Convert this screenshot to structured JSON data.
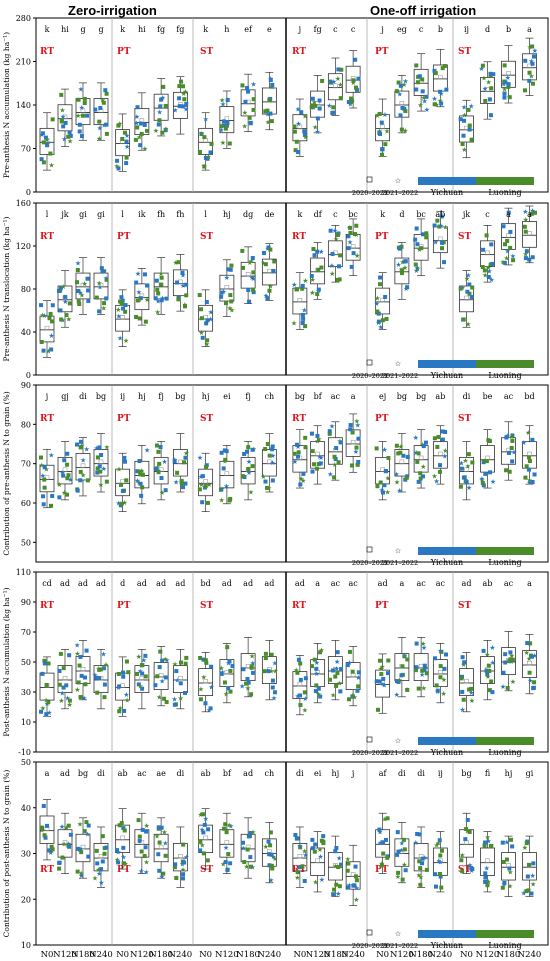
{
  "header": {
    "left": "Zero-irrigation",
    "right": "One-off irrigation"
  },
  "colors": {
    "yichuan": "#2b78c2",
    "luoning": "#4a8c2a",
    "red_label": "#e0141c",
    "box": "#333333"
  },
  "tillage": [
    "RT",
    "PT",
    "ST"
  ],
  "x_categories": [
    "N0",
    "N120",
    "N180",
    "N240"
  ],
  "legend": {
    "year1": "2020–2021",
    "year2": "2021–2022",
    "site1": "Yichuan",
    "site2": "Luoning"
  },
  "chart_data": [
    {
      "type": "box",
      "ylabel": "Pre-anthesis N accumulation (kg ha⁻¹)",
      "ylim": [
        0,
        280
      ],
      "yticks": [
        0,
        70,
        140,
        210,
        280
      ],
      "letters": [
        "k",
        "hi",
        "g",
        "g",
        "k",
        "hi",
        "fg",
        "fg",
        "k",
        "h",
        "ef",
        "e",
        "j",
        "fg",
        "c",
        "c",
        "j",
        "eg",
        "c",
        "b",
        "ij",
        "d",
        "b",
        "a"
      ],
      "medians": [
        80,
        118,
        128,
        128,
        78,
        112,
        135,
        138,
        80,
        115,
        142,
        145,
        102,
        140,
        168,
        180,
        102,
        140,
        175,
        182,
        100,
        162,
        188,
        200
      ]
    },
    {
      "type": "box",
      "ylabel": "Pre-anthesis N translocation (kg ha⁻¹)",
      "ylim": [
        0,
        160
      ],
      "yticks": [
        0,
        40,
        80,
        120,
        160
      ],
      "letters": [
        "l",
        "jk",
        "gi",
        "gi",
        "l",
        "ik",
        "fh",
        "fh",
        "l",
        "hj",
        "dg",
        "de",
        "k",
        "df",
        "c",
        "bc",
        "k",
        "d",
        "bc",
        "ab",
        "jk",
        "c",
        "a",
        "a"
      ],
      "medians": [
        42,
        70,
        82,
        82,
        52,
        72,
        82,
        85,
        52,
        80,
        92,
        95,
        68,
        96,
        112,
        118,
        68,
        96,
        118,
        125,
        70,
        112,
        128,
        130
      ]
    },
    {
      "type": "box",
      "ylabel": "Contribution of pre-anthesis N to grain (%)",
      "ylim": [
        45,
        90
      ],
      "yticks": [
        50,
        60,
        70,
        80,
        90
      ],
      "letters": [
        "j",
        "gj",
        "di",
        "bg",
        "ij",
        "hj",
        "fj",
        "bg",
        "hj",
        "ei",
        "fj",
        "ch",
        "bg",
        "bf",
        "ac",
        "a",
        "ej",
        "bg",
        "bg",
        "ab",
        "di",
        "be",
        "ac",
        "bd"
      ],
      "medians": [
        66,
        68,
        69,
        70,
        65,
        67,
        68,
        70,
        65,
        67,
        68,
        70,
        71,
        72,
        73,
        75,
        68,
        70,
        71,
        72,
        68,
        71,
        73,
        72
      ]
    },
    {
      "type": "box",
      "ylabel": "Post-anthesis N accumulation (kg ha⁻¹)",
      "ylim": [
        -10,
        110
      ],
      "yticks": [
        -10,
        10,
        30,
        50,
        70,
        90,
        110
      ],
      "letters": [
        "cd",
        "ad",
        "ad",
        "ad",
        "d",
        "ad",
        "ad",
        "ad",
        "bd",
        "ad",
        "ad",
        "ad",
        "ad",
        "a",
        "ac",
        "ac",
        "ad",
        "a",
        "ac",
        "ac",
        "ad",
        "ab",
        "ac",
        "a"
      ],
      "medians": [
        33,
        38,
        44,
        38,
        33,
        38,
        40,
        38,
        36,
        42,
        46,
        44,
        34,
        42,
        44,
        40,
        35,
        46,
        46,
        42,
        36,
        44,
        50,
        48
      ]
    },
    {
      "type": "box",
      "ylabel": "Contribution of post-anthesis N to grain (%)",
      "ylim": [
        10,
        50
      ],
      "yticks": [
        10,
        20,
        30,
        40,
        50
      ],
      "letters": [
        "a",
        "ad",
        "bg",
        "di",
        "ab",
        "ac",
        "ae",
        "di",
        "ab",
        "bf",
        "ad",
        "ch",
        "di",
        "ei",
        "hj",
        "j",
        "af",
        "di",
        "di",
        "ij",
        "bg",
        "fi",
        "hj",
        "gi"
      ],
      "medians": [
        35,
        32,
        31,
        29,
        33,
        32,
        31,
        29,
        33,
        32,
        31,
        30,
        29,
        28,
        27,
        25,
        32,
        30,
        29,
        28,
        32,
        28,
        27,
        27
      ]
    }
  ]
}
